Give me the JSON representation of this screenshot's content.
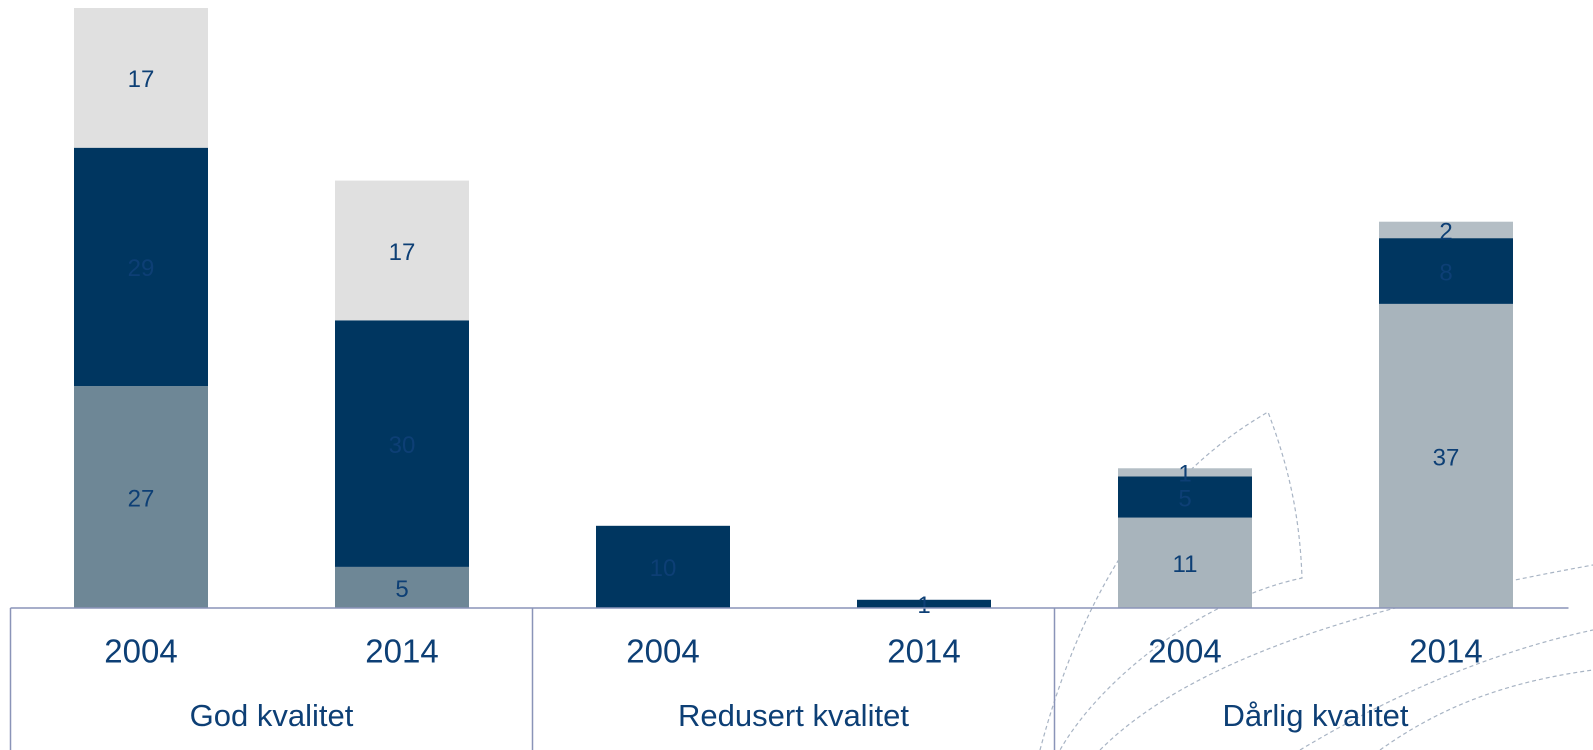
{
  "chart_data": {
    "type": "stacked-bar",
    "categories": [
      "2004",
      "2014",
      "2004",
      "2014",
      "2004",
      "2014"
    ],
    "groups": [
      "God kvalitet",
      "Redusert kvalitet",
      "Dårlig kvalitet"
    ],
    "series": [
      {
        "color": "#6e8796",
        "values": [
          27,
          5,
          null,
          null,
          null,
          null
        ]
      },
      {
        "color": "#a8b4bc",
        "values": [
          null,
          null,
          null,
          null,
          11,
          37
        ]
      },
      {
        "color": "#003660",
        "values": [
          29,
          30,
          10,
          1,
          5,
          8
        ]
      },
      {
        "color": "#e0e0e0",
        "values": [
          17,
          17,
          null,
          null,
          null,
          null
        ]
      },
      {
        "color": "#b4bec5",
        "values": [
          null,
          null,
          null,
          null,
          1,
          2
        ]
      }
    ],
    "label_color": "#0d3f75",
    "ylim": [
      0,
      73
    ]
  }
}
